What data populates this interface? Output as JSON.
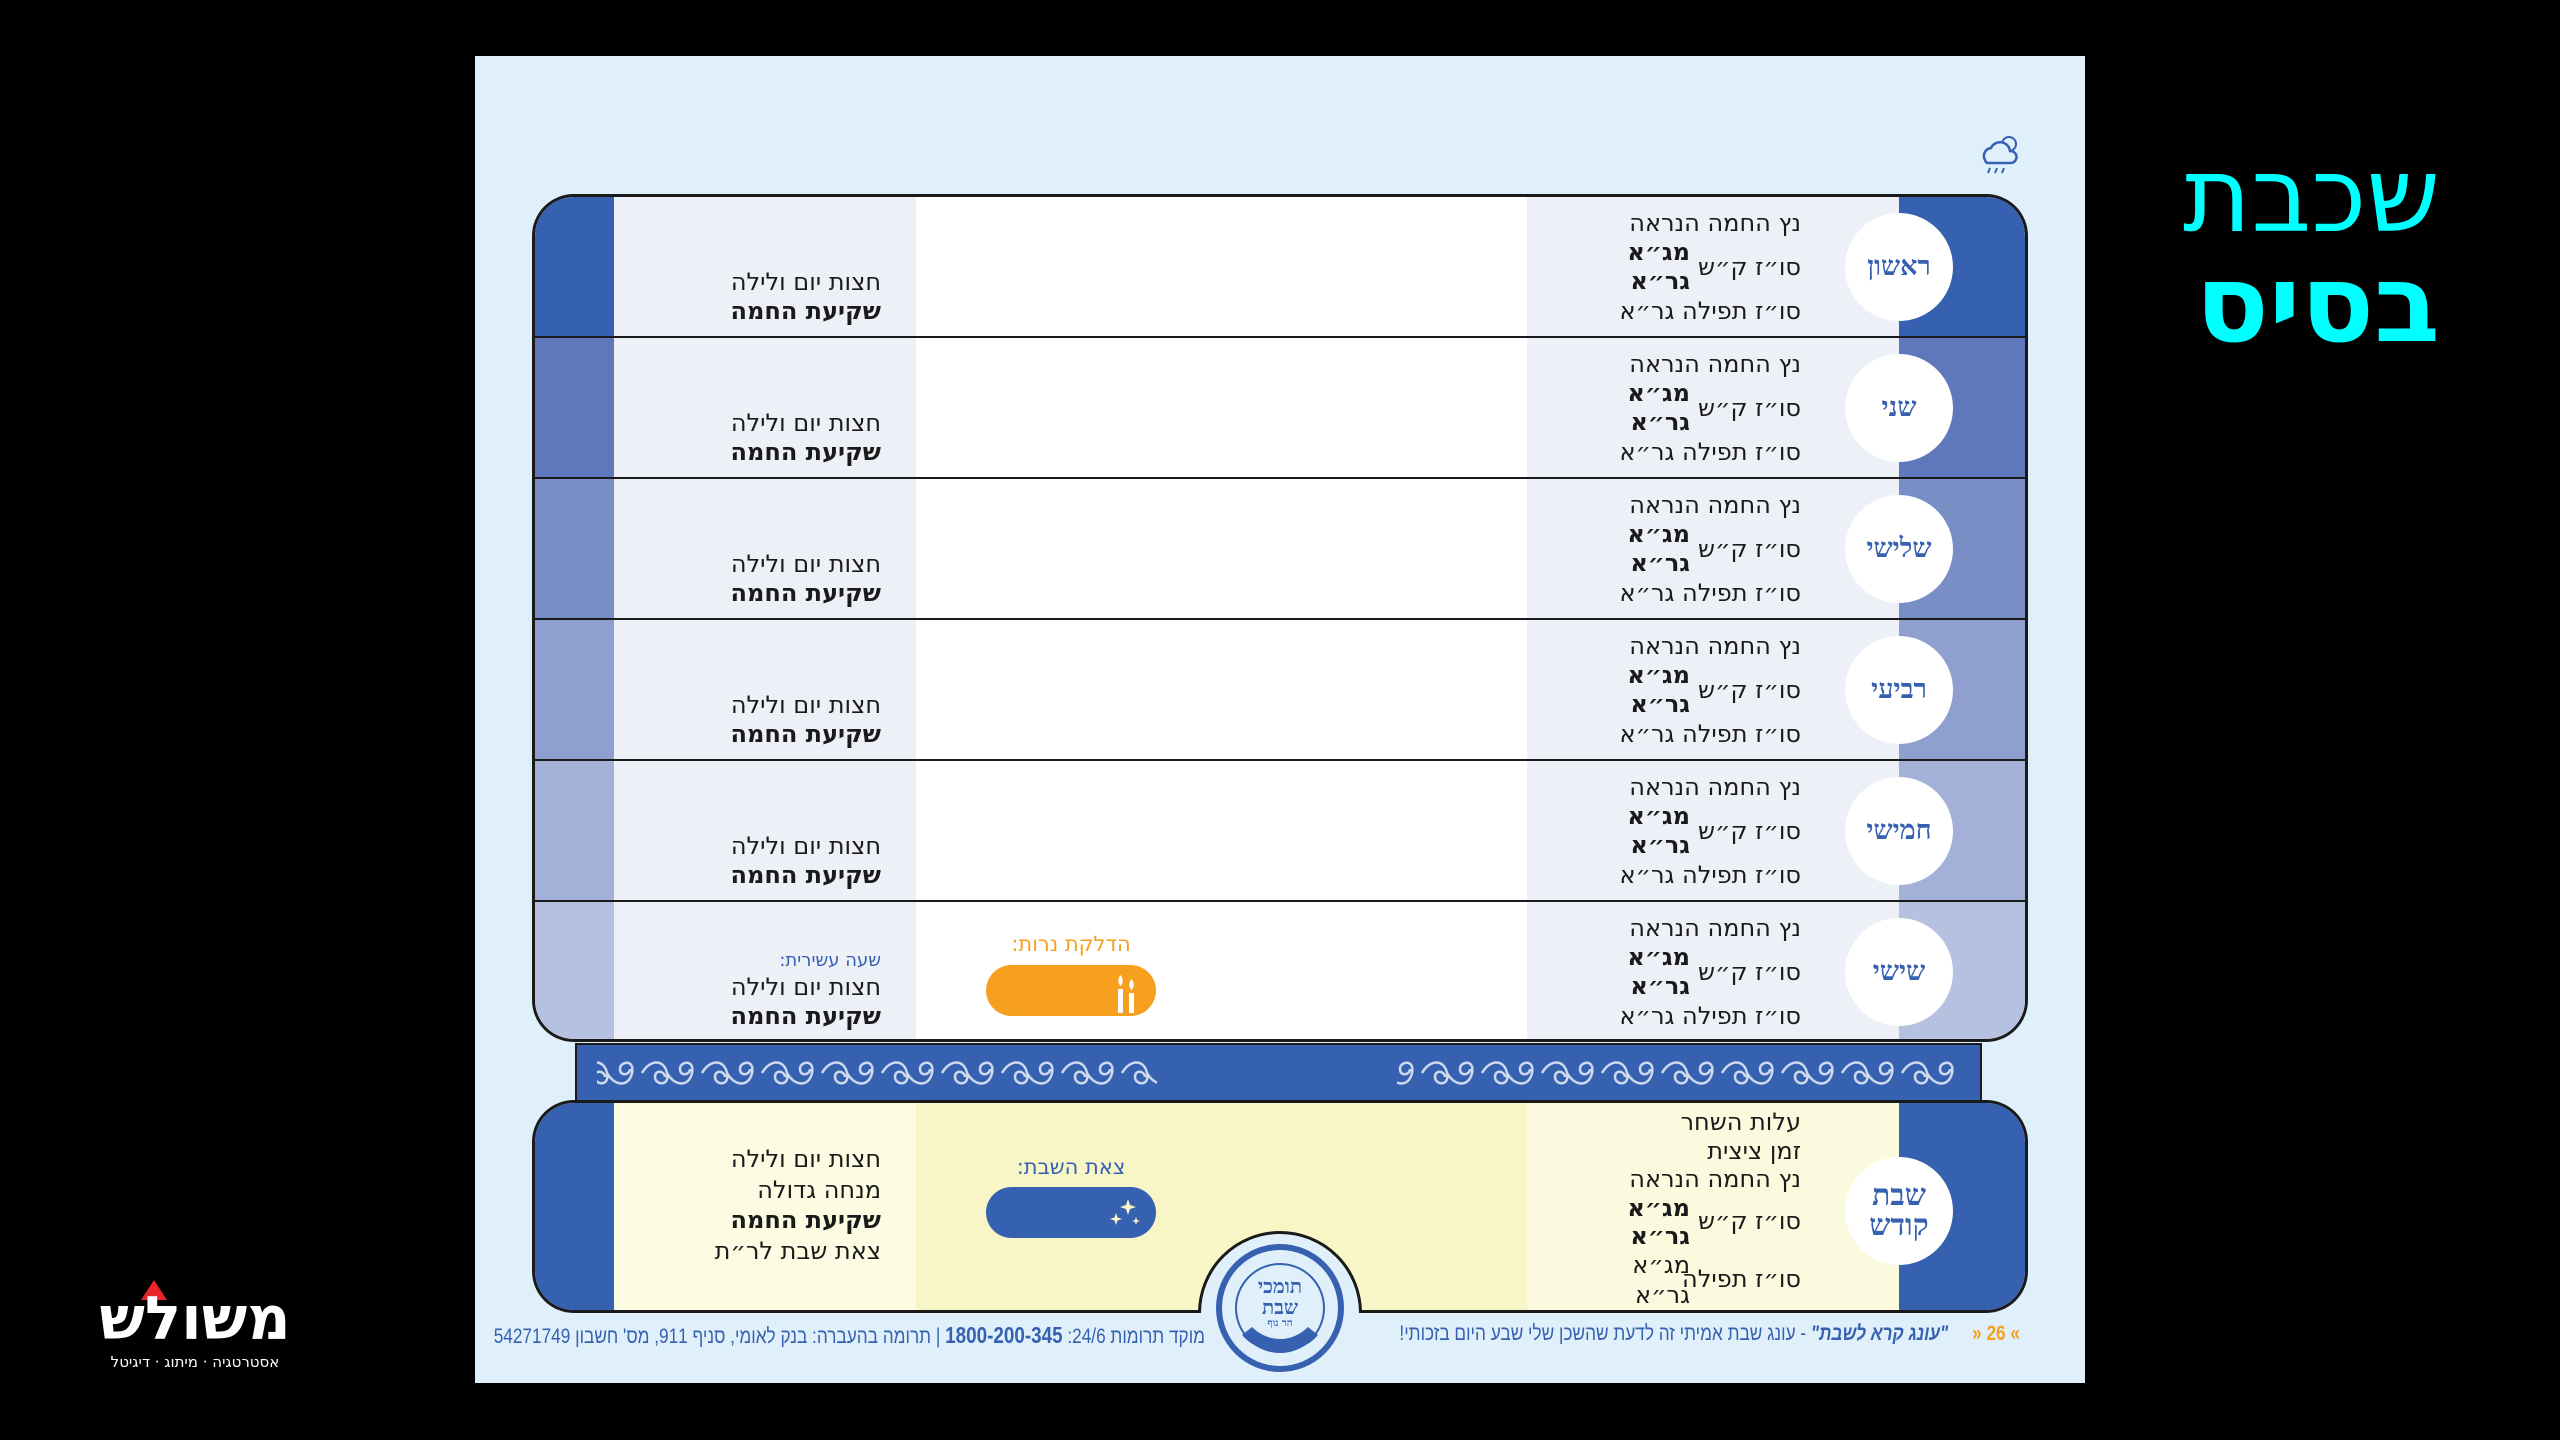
{
  "title": {
    "line1": "שכבת",
    "line2": "בסיס"
  },
  "weather_icon": "cloud-rain-sun-icon",
  "colors": {
    "accent": "#3660b0",
    "orange": "#f7a01f",
    "title": "#00ffff",
    "page_bg": "#dff0fb"
  },
  "weekdays": [
    {
      "name": "ראשון",
      "strip_color": "#3660b0"
    },
    {
      "name": "שני",
      "strip_color": "#5f78bb"
    },
    {
      "name": "שלישי",
      "strip_color": "#7a8ec6"
    },
    {
      "name": "רביעי",
      "strip_color": "#8f9fcf"
    },
    {
      "name": "חמישי",
      "strip_color": "#a3b1d8"
    },
    {
      "name": "שישי",
      "strip_color": "#b6c1e1"
    }
  ],
  "labels": {
    "netz": "נץ החמה הנראה",
    "shema": "סו״ז ק״ש",
    "mga": "מג״א",
    "gra": "גר״א",
    "tefila_gra": "סו״ז תפילה גר״א",
    "chatzot": "חצות יום ולילה",
    "shkia": "שקיעת החמה"
  },
  "friday": {
    "tenth_hour": "שעה עשירית:",
    "candle_lighting": "הדלקת נרות:"
  },
  "shabbat": {
    "name_line1": "שבת",
    "name_line2": "קודש",
    "alot": "עלות השחר",
    "tzitzit": "זמן ציצית",
    "netz": "נץ החמה הנראה",
    "shema": "סו״ז ק״ש",
    "mga1": "מג״א",
    "gra1": "גר״א",
    "tefila": "סו״ז תפילה",
    "mga2": "מג״א",
    "gra2": "גר״א",
    "chatzot": "חצות יום ולילה",
    "mincha": "מנחה גדולה",
    "shkia": "שקיעת החמה",
    "rt": "צאת שבת לר״ת",
    "motzei": "צאת השבת:"
  },
  "seal": {
    "line1": "תומכי",
    "line2": "שבת",
    "line3": "הר נוף",
    "ring": "Tomchei Shabbos - Har nof"
  },
  "footer": {
    "page": "26",
    "quote": "\"עונג קרא לשבת\"",
    "quote_rest": " - עונג שבת אמיתי זה לדעת שהשכן שלי שבע היום בזכותי!",
    "hotline": "מוקד תרומות 24/6: ",
    "phone": "1800-200-345",
    "sep": " | ",
    "transfer": "תרומה בהעברה: בנק לאומי, סניף 911, מס' חשבון 54271749"
  },
  "logo": {
    "name": "משולש",
    "tagline": "אסטרטגיה · מיתוג · דיגיטל"
  }
}
